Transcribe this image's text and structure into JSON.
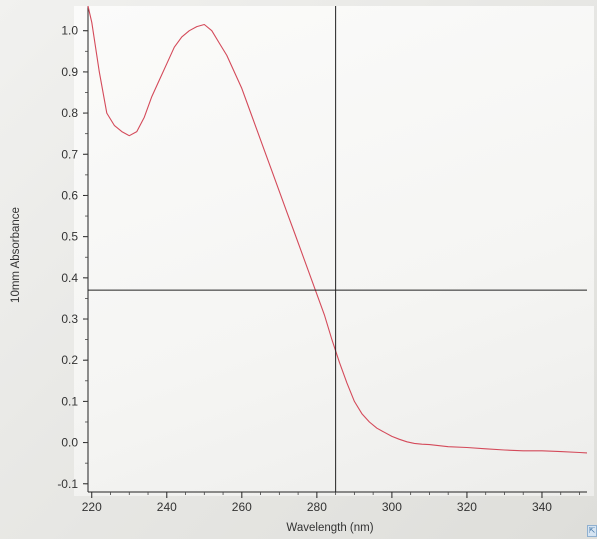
{
  "chart_data": {
    "type": "line",
    "title": "",
    "xlabel": "Wavelength (nm)",
    "ylabel": "10mm Absorbance",
    "xlim": [
      219,
      352
    ],
    "ylim": [
      -0.12,
      1.06
    ],
    "x_ticks": [
      220,
      240,
      260,
      280,
      300,
      320,
      340
    ],
    "y_ticks": [
      -0.1,
      0.0,
      0.1,
      0.2,
      0.3,
      0.4,
      0.5,
      0.6,
      0.7,
      0.8,
      0.9,
      1.0
    ],
    "y_tick_labels": [
      "-0.1",
      "0.0",
      "0.1",
      "0.2",
      "0.3",
      "0.4",
      "0.5",
      "0.6",
      "0.7",
      "0.8",
      "0.9",
      "1.0"
    ],
    "x_tick_labels": [
      "220",
      "240",
      "260",
      "280",
      "300",
      "320",
      "340"
    ],
    "grid": false,
    "cursor": {
      "x": 285,
      "y": 0.37
    },
    "series": [
      {
        "color": "#d44a5a",
        "x": [
          219,
          220,
          222,
          224,
          226,
          228,
          230,
          232,
          234,
          236,
          238,
          240,
          242,
          244,
          246,
          248,
          250,
          252,
          254,
          256,
          258,
          260,
          262,
          264,
          266,
          268,
          270,
          272,
          274,
          276,
          278,
          280,
          282,
          284,
          286,
          288,
          290,
          292,
          294,
          296,
          298,
          300,
          302,
          304,
          306,
          308,
          310,
          315,
          320,
          325,
          330,
          335,
          340,
          345,
          350,
          352
        ],
        "y": [
          1.06,
          1.02,
          0.9,
          0.8,
          0.77,
          0.755,
          0.745,
          0.755,
          0.79,
          0.84,
          0.88,
          0.92,
          0.96,
          0.985,
          1.0,
          1.01,
          1.015,
          1.0,
          0.97,
          0.94,
          0.9,
          0.86,
          0.81,
          0.76,
          0.71,
          0.66,
          0.61,
          0.56,
          0.51,
          0.46,
          0.41,
          0.36,
          0.31,
          0.25,
          0.195,
          0.145,
          0.1,
          0.07,
          0.05,
          0.035,
          0.025,
          0.015,
          0.008,
          0.002,
          -0.002,
          -0.004,
          -0.005,
          -0.01,
          -0.012,
          -0.015,
          -0.018,
          -0.02,
          -0.02,
          -0.022,
          -0.024,
          -0.025
        ]
      }
    ]
  },
  "corner_icon": "resize-grip-icon"
}
